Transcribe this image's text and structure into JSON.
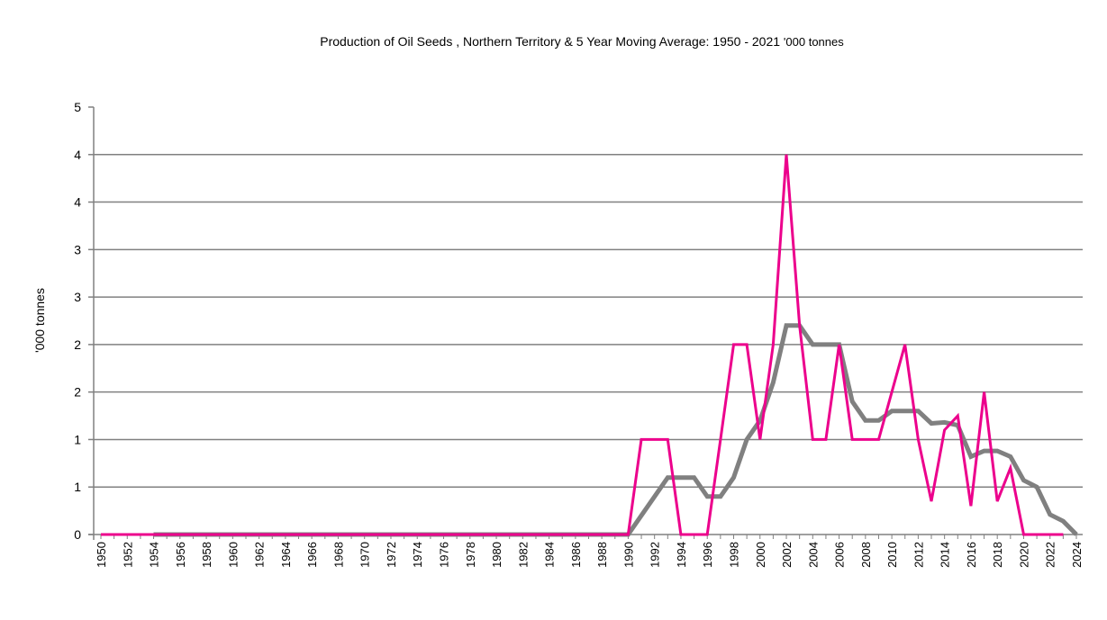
{
  "chart_data": {
    "type": "line",
    "title": "Production of Oil Seeds , Northern  Territory & 5 Year Moving Average: 1950 - 2021",
    "title_unit": "'000 tonnes",
    "xlabel": "",
    "ylabel": "'000 tonnes",
    "ylim": [
      0,
      4.5
    ],
    "yticks": [
      0,
      0.5,
      1,
      1.5,
      2,
      2.5,
      3,
      3.5,
      4,
      4.5
    ],
    "ytick_labels": [
      "0",
      "1",
      "1",
      "2",
      "2",
      "3",
      "3",
      "4",
      "4",
      "5"
    ],
    "xlim": [
      1950,
      2024
    ],
    "xtick_labels": [
      "1950",
      "1952",
      "1954",
      "1956",
      "1958",
      "1960",
      "1962",
      "1964",
      "1966",
      "1968",
      "1970",
      "1972",
      "1974",
      "1976",
      "1978",
      "1980",
      "1982",
      "1984",
      "1986",
      "1988",
      "1990",
      "1992",
      "1994",
      "1996",
      "1998",
      "2000",
      "2002",
      "2004",
      "2006",
      "2008",
      "2010",
      "2012",
      "2014",
      "2016",
      "2018",
      "2020",
      "2022",
      "2024"
    ],
    "grid": true,
    "legend": "none",
    "series": [
      {
        "name": "Production",
        "color": "#ec008c",
        "x": [
          1950,
          1951,
          1952,
          1953,
          1954,
          1955,
          1956,
          1957,
          1958,
          1959,
          1960,
          1961,
          1962,
          1963,
          1964,
          1965,
          1966,
          1967,
          1968,
          1969,
          1970,
          1971,
          1972,
          1973,
          1974,
          1975,
          1976,
          1977,
          1978,
          1979,
          1980,
          1981,
          1982,
          1983,
          1984,
          1985,
          1986,
          1987,
          1988,
          1989,
          1990,
          1991,
          1992,
          1993,
          1994,
          1995,
          1996,
          1997,
          1998,
          1999,
          2000,
          2001,
          2002,
          2003,
          2004,
          2005,
          2006,
          2007,
          2008,
          2009,
          2010,
          2011,
          2012,
          2013,
          2014,
          2015,
          2016,
          2017,
          2018,
          2019,
          2020,
          2021,
          2022,
          2023
        ],
        "values": [
          0,
          0,
          0,
          0,
          0,
          0,
          0,
          0,
          0,
          0,
          0,
          0,
          0,
          0,
          0,
          0,
          0,
          0,
          0,
          0,
          0,
          0,
          0,
          0,
          0,
          0,
          0,
          0,
          0,
          0,
          0,
          0,
          0,
          0,
          0,
          0,
          0,
          0,
          0,
          0,
          0,
          1.0,
          1.0,
          1.0,
          0,
          0,
          0,
          1.0,
          2.0,
          2.0,
          1.0,
          2.0,
          4.0,
          2.2,
          1.0,
          1.0,
          2.0,
          1.0,
          1.0,
          1.0,
          1.5,
          2.0,
          1.0,
          0.35,
          1.1,
          1.25,
          0.3,
          1.5,
          0.35,
          0.7,
          0,
          0,
          0,
          0
        ]
      },
      {
        "name": "5 Year Moving Average",
        "color": "#808080",
        "x": [
          1954,
          1955,
          1956,
          1957,
          1958,
          1959,
          1960,
          1961,
          1962,
          1963,
          1964,
          1965,
          1966,
          1967,
          1968,
          1969,
          1970,
          1971,
          1972,
          1973,
          1974,
          1975,
          1976,
          1977,
          1978,
          1979,
          1980,
          1981,
          1982,
          1983,
          1984,
          1985,
          1986,
          1987,
          1988,
          1989,
          1990,
          1991,
          1992,
          1993,
          1994,
          1995,
          1996,
          1997,
          1998,
          1999,
          2000,
          2001,
          2002,
          2003,
          2004,
          2005,
          2006,
          2007,
          2008,
          2009,
          2010,
          2011,
          2012,
          2013,
          2014,
          2015,
          2016,
          2017,
          2018,
          2019,
          2020,
          2021,
          2022,
          2023,
          2024
        ],
        "values": [
          0,
          0,
          0,
          0,
          0,
          0,
          0,
          0,
          0,
          0,
          0,
          0,
          0,
          0,
          0,
          0,
          0,
          0,
          0,
          0,
          0,
          0,
          0,
          0,
          0,
          0,
          0,
          0,
          0,
          0,
          0,
          0,
          0,
          0,
          0,
          0,
          0,
          0.2,
          0.4,
          0.6,
          0.6,
          0.6,
          0.4,
          0.4,
          0.6,
          1.0,
          1.2,
          1.6,
          2.2,
          2.2,
          2.0,
          2.0,
          2.0,
          1.4,
          1.2,
          1.2,
          1.3,
          1.3,
          1.3,
          1.17,
          1.18,
          1.15,
          0.82,
          0.88,
          0.88,
          0.82,
          0.57,
          0.5,
          0.21,
          0.14,
          0
        ]
      }
    ]
  }
}
